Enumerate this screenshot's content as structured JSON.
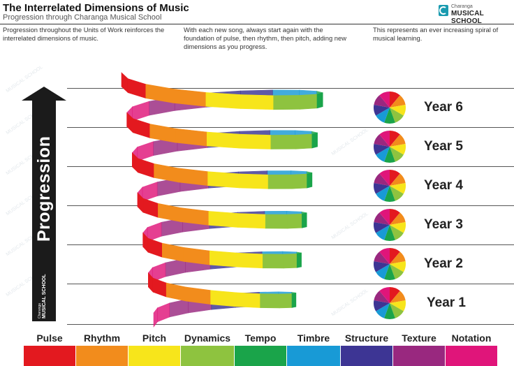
{
  "header": {
    "title": "The Interrelated Dimensions of Music",
    "subtitle": "Progression through Charanga Musical School",
    "logo_small": "Charanga",
    "logo_big": "MUSICAL SCHOOL"
  },
  "descriptions": [
    "Progression throughout the Units of Work reinforces the interrelated dimensions of music.",
    "With each new song, always start again with the foundation of pulse, then rhythm, then pitch, adding new dimensions as you progress.",
    "This represents an ever increasing spiral of musical learning."
  ],
  "arrow": {
    "label": "Progression",
    "logo_small": "Charanga",
    "logo_big": "MUSICAL SCHOOL"
  },
  "years": [
    "Year 6",
    "Year 5",
    "Year 4",
    "Year 3",
    "Year 2",
    "Year 1"
  ],
  "dimensions": [
    {
      "name": "Pulse",
      "color": "#e3191f"
    },
    {
      "name": "Rhythm",
      "color": "#f28c1c"
    },
    {
      "name": "Pitch",
      "color": "#f7e51b"
    },
    {
      "name": "Dynamics",
      "color": "#8ec33f"
    },
    {
      "name": "Tempo",
      "color": "#1aa44a"
    },
    {
      "name": "Timbre",
      "color": "#189ad6"
    },
    {
      "name": "Structure",
      "color": "#3d3594"
    },
    {
      "name": "Texture",
      "color": "#99287f"
    },
    {
      "name": "Notation",
      "color": "#e0157a"
    }
  ],
  "watermark": "MUSICAL SCHOOL"
}
